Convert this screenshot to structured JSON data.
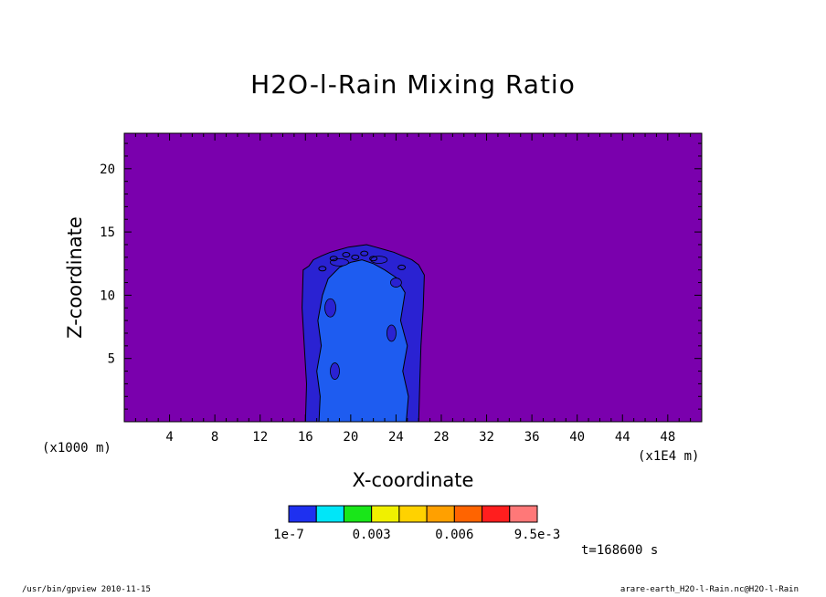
{
  "chart_data": {
    "type": "contour",
    "title": "H2O-l-Rain Mixing Ratio",
    "xlabel": "X-coordinate",
    "ylabel": "Z-coordinate",
    "x_unit_left": "(x1000 m)",
    "x_unit_right": "(x1E4 m)",
    "xlim": [
      0,
      51
    ],
    "ylim": [
      0,
      22.8
    ],
    "x_ticks": [
      4,
      8,
      12,
      16,
      20,
      24,
      28,
      32,
      36,
      40,
      44,
      48
    ],
    "y_ticks": [
      5,
      10,
      15,
      20
    ],
    "background_level": "below 1e-7",
    "cloud_region": {
      "x_range": [
        16,
        26.3
      ],
      "top_height": 14,
      "description_levels": [
        "outer ring",
        "inner core"
      ]
    },
    "colorbar": {
      "colors": [
        "#1e30f0",
        "#00e6f8",
        "#19e619",
        "#f0f000",
        "#ffd200",
        "#ffa000",
        "#ff6400",
        "#ff1e1e",
        "#ff7878"
      ],
      "labels": [
        "1e-7",
        "0.003",
        "0.006",
        "9.5e-3"
      ],
      "label_positions": [
        0,
        3,
        6,
        9
      ]
    },
    "time": "t=168600 s"
  },
  "colors": {
    "background_field": "#7a00ad",
    "outer_ring": "#2a22d2",
    "inner_core": "#1e5cf0",
    "contour_line": "#000000"
  },
  "footer": {
    "left": "/usr/bin/gpview  2010-11-15",
    "right": "arare-earth_H2O-l-Rain.nc@H2O-l-Rain"
  }
}
